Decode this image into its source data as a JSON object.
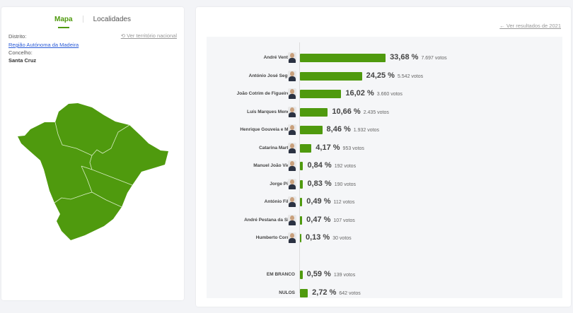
{
  "tabs": [
    {
      "label": "Mapa",
      "active": true
    },
    {
      "label": "Localidades",
      "active": false
    }
  ],
  "location": {
    "distrito_label": "Distrito:",
    "distrito": "Região Autónoma da Madeira",
    "concelho_label": "Concelho:",
    "concelho": "Santa Cruz",
    "national_link": "Ver território nacional",
    "national_icon": "undo-icon"
  },
  "map": {
    "fill_color": "#4f9a0e"
  },
  "results": {
    "previous_link": "← Ver resultados de 2021",
    "bar_color": "#4f9a0e",
    "candidates": [
      {
        "name": "André Ventura",
        "pct": 33.68,
        "pct_label": "33,68 %",
        "votes": "7.697 votos"
      },
      {
        "name": "António José Seguro",
        "pct": 24.25,
        "pct_label": "24,25 %",
        "votes": "5.542 votos"
      },
      {
        "name": "João Cotrim de Figueiredo",
        "pct": 16.02,
        "pct_label": "16,02 %",
        "votes": "3.660 votos"
      },
      {
        "name": "Luís Marques Mendes",
        "pct": 10.66,
        "pct_label": "10,66 %",
        "votes": "2.435 votos"
      },
      {
        "name": "Henrique Gouveia e Melo",
        "pct": 8.46,
        "pct_label": "8,46 %",
        "votes": "1.932 votos"
      },
      {
        "name": "Catarina Martins",
        "pct": 4.17,
        "pct_label": "4,17 %",
        "votes": "953 votos"
      },
      {
        "name": "Manuel João Vieira",
        "pct": 0.84,
        "pct_label": "0,84 %",
        "votes": "192 votos"
      },
      {
        "name": "Jorge Pinto",
        "pct": 0.83,
        "pct_label": "0,83 %",
        "votes": "190 votos"
      },
      {
        "name": "António Filipe",
        "pct": 0.49,
        "pct_label": "0,49 %",
        "votes": "112 votos"
      },
      {
        "name": "André Pestana da Silva",
        "pct": 0.47,
        "pct_label": "0,47 %",
        "votes": "107 votos"
      },
      {
        "name": "Humberto Correia",
        "pct": 0.13,
        "pct_label": "0,13 %",
        "votes": "30 votos"
      }
    ],
    "others": [
      {
        "name": "EM BRANCO",
        "pct": 0.59,
        "pct_label": "0,59 %",
        "votes": "139 votos"
      },
      {
        "name": "NULOS",
        "pct": 2.72,
        "pct_label": "2,72 %",
        "votes": "642 votos"
      }
    ]
  }
}
